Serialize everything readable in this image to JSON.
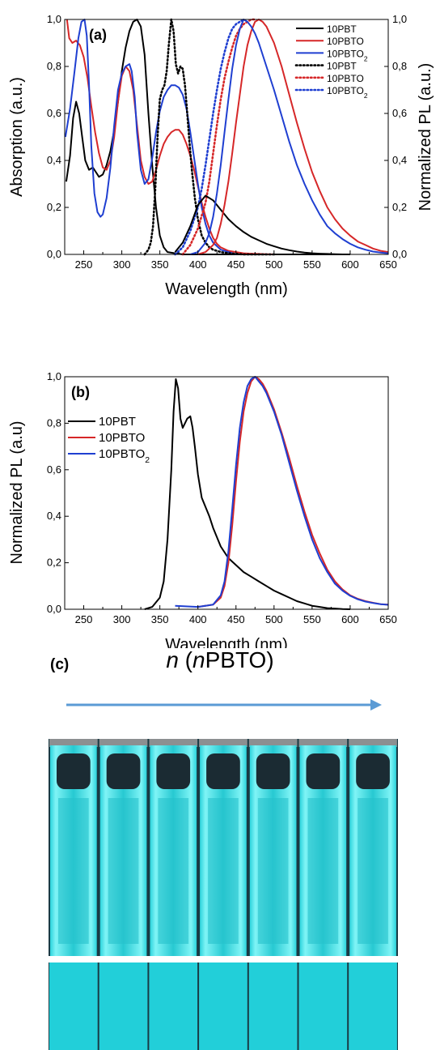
{
  "colors": {
    "black": "#000000",
    "red": "#d62728",
    "blue": "#1f3fd1",
    "arrow": "#5b9bd5",
    "cuvette": "#33e2e8",
    "solution": "#1b2b33"
  },
  "chart_data": [
    {
      "type": "line",
      "panel_label": "(a)",
      "xlabel": "Wavelength (nm)",
      "ylabel": "Absorption (a.u.)",
      "y2label": "Normalized PL (a.u.)",
      "xlim": [
        225,
        650
      ],
      "ylim": [
        0,
        1.0
      ],
      "y2lim": [
        0,
        1.0
      ],
      "xticks": [
        "250",
        "300",
        "350",
        "400",
        "450",
        "500",
        "550",
        "600",
        "650"
      ],
      "yticks": [
        "0,0",
        "0,2",
        "0,4",
        "0,6",
        "0,8",
        "1,0"
      ],
      "y2ticks": [
        "0,0",
        "0,2",
        "0,4",
        "0,6",
        "0,8",
        "1,0"
      ],
      "legend_position": "top-right",
      "grid": false,
      "series": [
        {
          "name": "10PBT",
          "name_sub": "",
          "style": "solid",
          "color": "#000000",
          "axis": "left",
          "x": [
            227,
            232,
            236,
            240,
            244,
            248,
            252,
            257,
            262,
            266,
            270,
            275,
            280,
            285,
            290,
            295,
            300,
            305,
            310,
            315,
            320,
            325,
            330,
            335,
            340,
            345,
            350,
            355,
            360,
            370,
            380,
            400,
            420,
            450,
            500,
            550,
            600
          ],
          "y": [
            0.31,
            0.42,
            0.58,
            0.65,
            0.6,
            0.5,
            0.4,
            0.36,
            0.37,
            0.35,
            0.33,
            0.34,
            0.38,
            0.44,
            0.53,
            0.65,
            0.78,
            0.88,
            0.95,
            0.99,
            1.0,
            0.97,
            0.85,
            0.6,
            0.38,
            0.2,
            0.08,
            0.03,
            0.01,
            0.005,
            0.0,
            0.0,
            0.0,
            0.0,
            0.0,
            0.0,
            0.0
          ]
        },
        {
          "name": "10PBTO",
          "name_sub": "",
          "style": "solid",
          "color": "#d62728",
          "axis": "left",
          "x": [
            228,
            231,
            235,
            240,
            245,
            250,
            255,
            260,
            265,
            270,
            275,
            280,
            285,
            290,
            295,
            300,
            305,
            310,
            315,
            320,
            325,
            330,
            335,
            340,
            345,
            350,
            355,
            360,
            365,
            370,
            375,
            380,
            385,
            390,
            395,
            400,
            405,
            410,
            415,
            420,
            425,
            430,
            440,
            450,
            460,
            470,
            480,
            490,
            500
          ],
          "y": [
            1.0,
            0.92,
            0.9,
            0.91,
            0.89,
            0.84,
            0.75,
            0.63,
            0.52,
            0.43,
            0.37,
            0.36,
            0.4,
            0.5,
            0.65,
            0.76,
            0.8,
            0.78,
            0.7,
            0.55,
            0.4,
            0.33,
            0.3,
            0.31,
            0.36,
            0.42,
            0.47,
            0.5,
            0.52,
            0.53,
            0.53,
            0.51,
            0.47,
            0.42,
            0.36,
            0.29,
            0.22,
            0.16,
            0.11,
            0.07,
            0.045,
            0.03,
            0.015,
            0.01,
            0.005,
            0.003,
            0.002,
            0.001,
            0.0
          ]
        },
        {
          "name": "10PBTO",
          "name_sub": "2",
          "style": "solid",
          "color": "#1f3fd1",
          "axis": "left",
          "x": [
            226,
            232,
            238,
            243,
            247,
            251,
            254,
            257,
            260,
            264,
            268,
            272,
            275,
            280,
            285,
            290,
            295,
            300,
            305,
            310,
            313,
            317,
            320,
            325,
            330,
            335,
            340,
            345,
            350,
            355,
            360,
            365,
            370,
            375,
            380,
            385,
            390,
            395,
            400,
            405,
            410,
            415,
            420,
            430,
            440,
            450
          ],
          "y": [
            0.5,
            0.62,
            0.78,
            0.92,
            0.99,
            1.0,
            0.93,
            0.72,
            0.46,
            0.26,
            0.18,
            0.16,
            0.17,
            0.24,
            0.37,
            0.55,
            0.7,
            0.77,
            0.8,
            0.81,
            0.78,
            0.67,
            0.52,
            0.36,
            0.3,
            0.32,
            0.41,
            0.52,
            0.61,
            0.67,
            0.7,
            0.72,
            0.72,
            0.71,
            0.68,
            0.62,
            0.52,
            0.41,
            0.3,
            0.2,
            0.13,
            0.08,
            0.05,
            0.02,
            0.01,
            0.0
          ]
        },
        {
          "name": "10PBT",
          "name_sub": "",
          "style": "dotted",
          "color": "#000000",
          "axis": "right",
          "x": [
            330,
            335,
            338,
            341,
            344,
            347,
            350,
            353,
            356,
            359,
            362,
            365,
            368,
            371,
            374,
            377,
            380,
            383,
            386,
            389,
            392,
            396,
            400,
            405,
            410,
            415,
            420,
            430,
            440,
            460,
            500
          ],
          "y": [
            0.0,
            0.02,
            0.05,
            0.12,
            0.28,
            0.5,
            0.66,
            0.7,
            0.72,
            0.78,
            0.9,
            1.0,
            0.95,
            0.81,
            0.77,
            0.8,
            0.79,
            0.72,
            0.6,
            0.47,
            0.36,
            0.24,
            0.15,
            0.08,
            0.05,
            0.03,
            0.02,
            0.01,
            0.005,
            0.0,
            0.0
          ]
        },
        {
          "name": "10PBTO",
          "name_sub": "",
          "style": "dotted",
          "color": "#d62728",
          "axis": "right",
          "x": [
            380,
            390,
            400,
            410,
            415,
            420,
            425,
            430,
            435,
            440,
            445,
            450,
            455,
            460,
            465,
            470,
            475
          ],
          "y": [
            0.0,
            0.04,
            0.11,
            0.22,
            0.31,
            0.43,
            0.55,
            0.66,
            0.75,
            0.82,
            0.88,
            0.93,
            0.96,
            0.98,
            0.99,
            1.0,
            1.0
          ]
        },
        {
          "name": "10PBTO",
          "name_sub": "2",
          "style": "dotted",
          "color": "#1f3fd1",
          "axis": "right",
          "x": [
            370,
            380,
            390,
            400,
            405,
            410,
            415,
            420,
            425,
            430,
            435,
            440,
            445,
            450,
            455,
            460
          ],
          "y": [
            0.0,
            0.03,
            0.1,
            0.2,
            0.28,
            0.38,
            0.49,
            0.6,
            0.7,
            0.79,
            0.86,
            0.92,
            0.96,
            0.98,
            0.99,
            1.0
          ]
        },
        {
          "name": "",
          "name_sub": "",
          "style": "solid",
          "color": "#000000",
          "axis": "right",
          "x": [
            370,
            380,
            390,
            400,
            410,
            420,
            430,
            440,
            450,
            460,
            470,
            480,
            490,
            500,
            510,
            520,
            530,
            540,
            550,
            560,
            570,
            580,
            590,
            600
          ],
          "y": [
            0.01,
            0.05,
            0.12,
            0.21,
            0.25,
            0.23,
            0.19,
            0.15,
            0.12,
            0.095,
            0.075,
            0.06,
            0.045,
            0.035,
            0.025,
            0.018,
            0.012,
            0.008,
            0.005,
            0.003,
            0.002,
            0.001,
            0.0,
            0.0
          ]
        },
        {
          "name": "",
          "name_sub": "",
          "style": "solid",
          "color": "#d62728",
          "axis": "right",
          "x": [
            400,
            410,
            420,
            425,
            430,
            435,
            440,
            445,
            450,
            455,
            460,
            465,
            470,
            475,
            480,
            485,
            490,
            500,
            510,
            520,
            530,
            540,
            550,
            560,
            570,
            580,
            590,
            600,
            610,
            620,
            630,
            640,
            650
          ],
          "y": [
            0.0,
            0.01,
            0.04,
            0.07,
            0.13,
            0.21,
            0.31,
            0.43,
            0.56,
            0.68,
            0.8,
            0.89,
            0.95,
            0.99,
            1.0,
            0.99,
            0.97,
            0.9,
            0.8,
            0.68,
            0.56,
            0.45,
            0.35,
            0.27,
            0.2,
            0.15,
            0.11,
            0.08,
            0.055,
            0.04,
            0.025,
            0.015,
            0.01
          ]
        },
        {
          "name": "",
          "name_sub": "",
          "style": "solid",
          "color": "#1f3fd1",
          "axis": "right",
          "x": [
            390,
            400,
            410,
            415,
            420,
            425,
            430,
            435,
            440,
            445,
            450,
            455,
            460,
            465,
            470,
            475,
            480,
            490,
            500,
            510,
            520,
            530,
            540,
            550,
            560,
            570,
            580,
            590,
            600,
            610,
            620,
            630,
            640,
            650
          ],
          "y": [
            0.0,
            0.01,
            0.05,
            0.09,
            0.16,
            0.26,
            0.38,
            0.52,
            0.66,
            0.79,
            0.89,
            0.96,
            1.0,
            0.99,
            0.97,
            0.94,
            0.9,
            0.8,
            0.7,
            0.59,
            0.48,
            0.38,
            0.3,
            0.23,
            0.17,
            0.12,
            0.09,
            0.065,
            0.045,
            0.03,
            0.02,
            0.012,
            0.008,
            0.005
          ]
        }
      ]
    },
    {
      "type": "line",
      "panel_label": "(b)",
      "xlabel": "Wavelength (nm)",
      "ylabel": "Normalized PL (a.u)",
      "xlim": [
        225,
        650
      ],
      "ylim": [
        0,
        1.0
      ],
      "xticks": [
        "250",
        "300",
        "350",
        "400",
        "450",
        "500",
        "550",
        "600",
        "650"
      ],
      "yticks": [
        "0,0",
        "0,2",
        "0,4",
        "0,6",
        "0,8",
        "1,0"
      ],
      "legend_position": "top-left",
      "grid": false,
      "series": [
        {
          "name": "10PBT",
          "name_sub": "",
          "style": "solid",
          "color": "#000000",
          "x": [
            330,
            340,
            350,
            355,
            360,
            365,
            368,
            371,
            374,
            377,
            380,
            383,
            386,
            390,
            393,
            396,
            400,
            405,
            410,
            415,
            420,
            430,
            440,
            450,
            460,
            470,
            480,
            490,
            500,
            510,
            520,
            530,
            540,
            550,
            560,
            570,
            580,
            590,
            600
          ],
          "y": [
            0.0,
            0.01,
            0.05,
            0.12,
            0.3,
            0.6,
            0.85,
            0.99,
            0.95,
            0.82,
            0.78,
            0.8,
            0.82,
            0.83,
            0.78,
            0.7,
            0.58,
            0.48,
            0.44,
            0.4,
            0.35,
            0.27,
            0.22,
            0.19,
            0.16,
            0.14,
            0.12,
            0.1,
            0.08,
            0.065,
            0.05,
            0.035,
            0.025,
            0.015,
            0.01,
            0.005,
            0.003,
            0.001,
            0.0
          ]
        },
        {
          "name": "10PBTO",
          "name_sub": "",
          "style": "solid",
          "color": "#d62728",
          "x": [
            400,
            420,
            430,
            435,
            440,
            445,
            450,
            455,
            460,
            465,
            470,
            475,
            480,
            485,
            490,
            500,
            510,
            520,
            530,
            540,
            550,
            560,
            570,
            580,
            590,
            600,
            610,
            620,
            630,
            640,
            650
          ],
          "y": [
            0.01,
            0.02,
            0.05,
            0.1,
            0.2,
            0.36,
            0.55,
            0.72,
            0.85,
            0.93,
            0.98,
            1.0,
            0.99,
            0.97,
            0.94,
            0.86,
            0.76,
            0.65,
            0.53,
            0.42,
            0.32,
            0.24,
            0.17,
            0.12,
            0.085,
            0.06,
            0.045,
            0.035,
            0.028,
            0.022,
            0.02
          ]
        },
        {
          "name": "10PBTO",
          "name_sub": "2",
          "style": "solid",
          "color": "#1f3fd1",
          "x": [
            370,
            400,
            420,
            430,
            435,
            440,
            445,
            450,
            455,
            460,
            465,
            470,
            475,
            480,
            485,
            490,
            500,
            510,
            520,
            530,
            540,
            550,
            560,
            570,
            580,
            590,
            600,
            610,
            620,
            630,
            640,
            650
          ],
          "y": [
            0.015,
            0.01,
            0.02,
            0.06,
            0.12,
            0.25,
            0.43,
            0.62,
            0.78,
            0.89,
            0.96,
            0.99,
            1.0,
            0.98,
            0.96,
            0.93,
            0.85,
            0.75,
            0.63,
            0.51,
            0.4,
            0.3,
            0.22,
            0.16,
            0.11,
            0.08,
            0.058,
            0.043,
            0.033,
            0.027,
            0.022,
            0.019
          ]
        }
      ]
    }
  ],
  "photo": {
    "panel_label": "(c)",
    "title_n": "n",
    "title_open": " (",
    "title_n2": "n",
    "title_rest": "PBTO)",
    "cuvette_count": 7
  }
}
